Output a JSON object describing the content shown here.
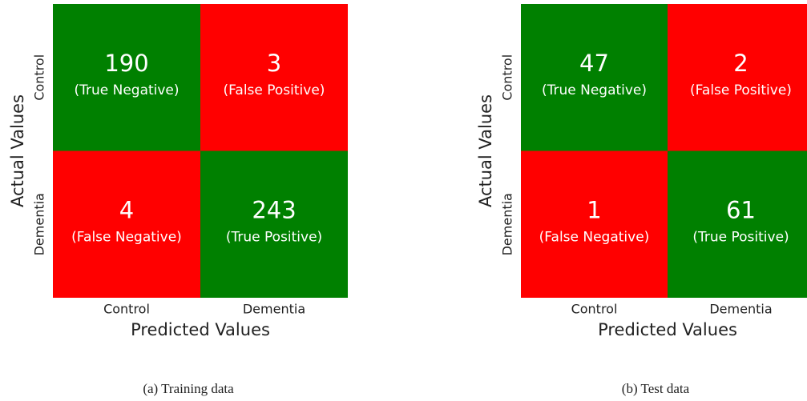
{
  "chart_data": [
    {
      "type": "heatmap",
      "x_label": "Predicted Values",
      "y_label": "Actual Values",
      "x_categories": [
        "Control",
        "Dementia"
      ],
      "y_categories": [
        "Control",
        "Dementia"
      ],
      "values": [
        [
          190,
          3
        ],
        [
          4,
          243
        ]
      ],
      "cell_labels": [
        [
          "(True Negative)",
          "(False Positive)"
        ],
        [
          "(False Negative)",
          "(True Positive)"
        ]
      ],
      "colors": [
        [
          "#008000",
          "#ff0000"
        ],
        [
          "#ff0000",
          "#008000"
        ]
      ],
      "caption": "(a) Training data"
    },
    {
      "type": "heatmap",
      "x_label": "Predicted Values",
      "y_label": "Actual Values",
      "x_categories": [
        "Control",
        "Dementia"
      ],
      "y_categories": [
        "Control",
        "Dementia"
      ],
      "values": [
        [
          47,
          2
        ],
        [
          1,
          61
        ]
      ],
      "cell_labels": [
        [
          "(True Negative)",
          "(False Positive)"
        ],
        [
          "(False Negative)",
          "(True Positive)"
        ]
      ],
      "colors": [
        [
          "#008000",
          "#ff0000"
        ],
        [
          "#ff0000",
          "#008000"
        ]
      ],
      "caption": "(b) Test data"
    }
  ]
}
